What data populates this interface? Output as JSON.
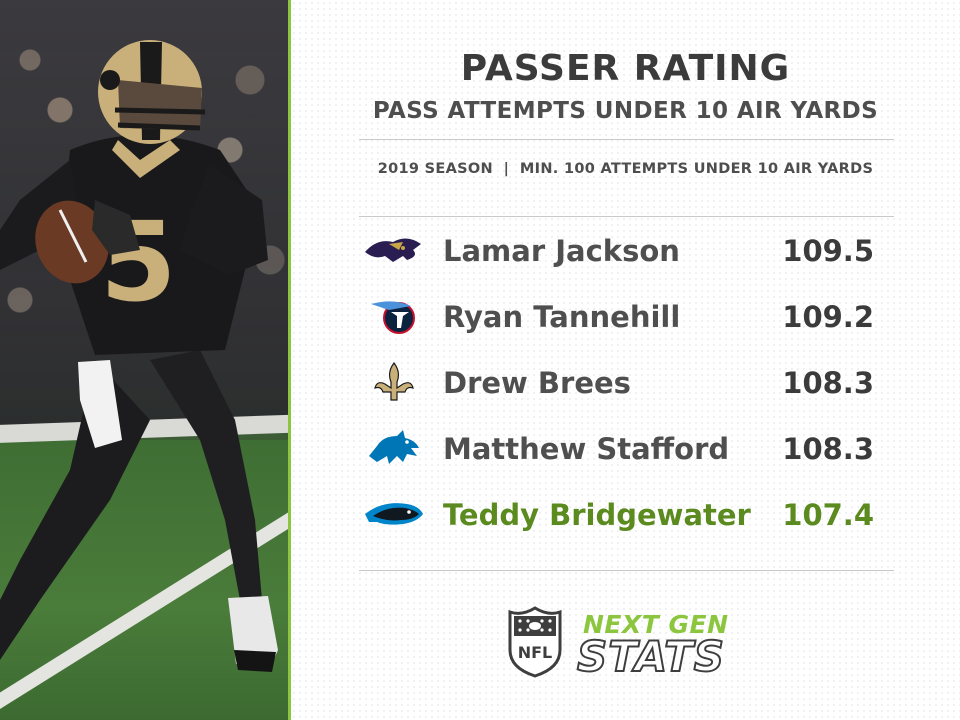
{
  "header": {
    "title": "PASSER RATING",
    "subtitle": "PASS ATTEMPTS UNDER 10 AIR YARDS",
    "note": "2019 SEASON  |  MIN. 100 ATTEMPTS UNDER 10 AIR YARDS"
  },
  "rows": [
    {
      "name": "Lamar Jackson",
      "value": "109.5",
      "logo": "ravens-logo-icon"
    },
    {
      "name": "Ryan Tannehill",
      "value": "109.2",
      "logo": "titans-logo-icon"
    },
    {
      "name": "Drew Brees",
      "value": "108.3",
      "logo": "saints-fleur-de-lis-icon"
    },
    {
      "name": "Matthew Stafford",
      "value": "108.3",
      "logo": "lions-logo-icon"
    },
    {
      "name": "Teddy Bridgewater",
      "value": "107.4",
      "logo": "panthers-logo-icon",
      "highlight": true
    }
  ],
  "footer": {
    "shield_text": "NFL",
    "brand_top": "NEXT GEN",
    "brand_bottom": "STATS"
  },
  "colors": {
    "accent_green": "#8cc63f",
    "highlight_green": "#5b8a1f",
    "text_dark": "#3b3b3b",
    "saints_gold": "#c9b07a"
  }
}
